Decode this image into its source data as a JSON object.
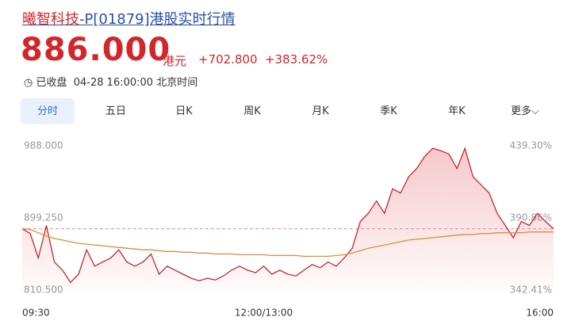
{
  "header": {
    "name": "曦智科技",
    "title_rest": "-P[01879]港股实时行情",
    "price": "886.000",
    "currency": "港元",
    "change": "+702.800",
    "change_pct": "+383.62%",
    "status": "已收盘",
    "time": "04-28 16:00:00 北京时间"
  },
  "tabs": [
    "分时",
    "五日",
    "日K",
    "周K",
    "月K",
    "季K",
    "年K",
    "更多"
  ],
  "chart_data": {
    "type": "line",
    "categories": [
      "09:30",
      null,
      null,
      null,
      null,
      null,
      null,
      null,
      null,
      null,
      null,
      null,
      null,
      null,
      null,
      null,
      null,
      null,
      null,
      null,
      null,
      null,
      null,
      null,
      null,
      null,
      null,
      null,
      null,
      null,
      "12:00/13:00",
      null,
      null,
      null,
      null,
      null,
      null,
      null,
      null,
      null,
      null,
      null,
      null,
      null,
      null,
      null,
      null,
      null,
      null,
      null,
      null,
      null,
      null,
      null,
      null,
      null,
      null,
      null,
      null,
      null,
      null,
      null,
      null,
      null,
      null,
      null,
      "16:00"
    ],
    "series": [
      {
        "color": "#c8262b",
        "values": [
          886,
          880,
          850,
          890,
          845,
          835,
          820,
          830,
          860,
          840,
          845,
          850,
          860,
          845,
          840,
          845,
          855,
          830,
          840,
          835,
          830,
          825,
          822,
          825,
          823,
          828,
          835,
          840,
          835,
          832,
          840,
          830,
          835,
          830,
          828,
          835,
          842,
          838,
          845,
          840,
          850,
          862,
          895,
          905,
          920,
          905,
          935,
          930,
          950,
          960,
          975,
          985,
          982,
          978,
          960,
          985,
          950,
          940,
          930,
          905,
          890,
          875,
          895,
          890,
          905,
          895,
          886
        ]
      },
      {
        "color": "#e08a3c",
        "values": [
          886,
          885,
          881,
          877,
          874,
          872,
          870,
          868,
          867,
          866,
          865,
          864,
          863,
          862,
          861,
          860,
          860,
          859,
          858,
          858,
          857,
          857,
          856,
          856,
          855,
          855,
          855,
          854,
          854,
          854,
          854,
          853,
          853,
          853,
          853,
          852,
          852,
          852,
          852,
          853,
          854,
          856,
          859,
          862,
          864,
          866,
          868,
          870,
          872,
          873,
          874,
          875,
          876,
          877,
          878,
          879,
          879,
          880,
          880,
          881,
          881,
          881,
          881,
          882,
          882,
          882,
          882
        ]
      }
    ],
    "ylim": [
      810.5,
      988
    ],
    "yticks": [
      {
        "value": 810.5,
        "label": "810.500"
      },
      {
        "value": 899.25,
        "label": "899.250"
      },
      {
        "value": 988,
        "label": "988.000"
      }
    ],
    "y2lim": [
      342.41,
      439.3
    ],
    "y2ticks": [
      {
        "value": 342.41,
        "label": "342.41%"
      },
      {
        "value": 390.86,
        "label": "390.86%"
      },
      {
        "value": 439.3,
        "label": "439.30%"
      }
    ]
  }
}
